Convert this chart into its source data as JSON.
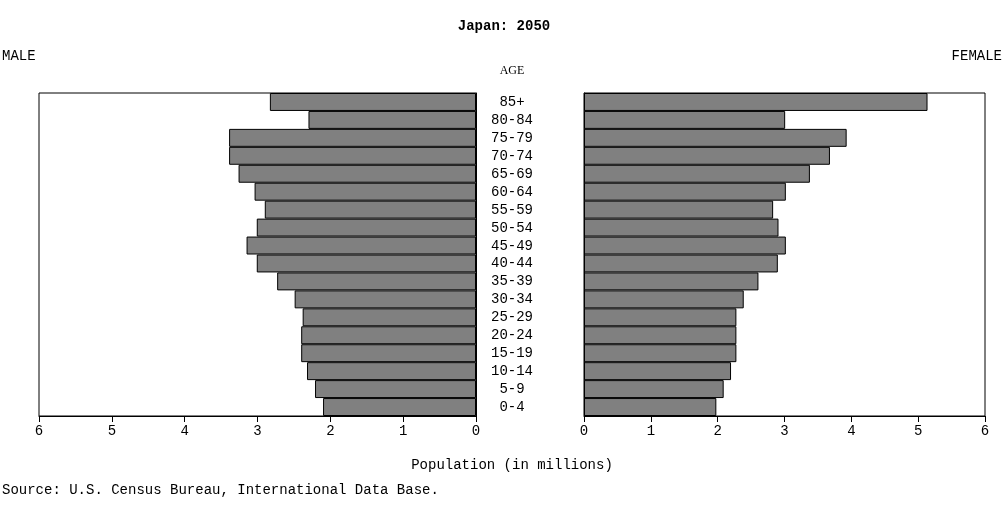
{
  "chart_data": [
    {
      "type": "bar",
      "orientation": "horizontal",
      "title": "Japan: 2050",
      "subtitle": "MALE",
      "ylabel": "AGE",
      "xlabel": "Population (in millions)",
      "annotations": [
        "Source: U.S. Census Bureau, International Data Base."
      ],
      "categories": [
        "85+",
        "80-84",
        "75-79",
        "70-74",
        "65-69",
        "60-64",
        "55-59",
        "50-54",
        "45-49",
        "40-44",
        "35-39",
        "30-34",
        "25-29",
        "20-24",
        "15-19",
        "10-14",
        "5-9",
        "0-4"
      ],
      "values": [
        2.83,
        2.3,
        3.39,
        3.39,
        3.26,
        3.04,
        2.9,
        3.01,
        3.15,
        3.01,
        2.73,
        2.49,
        2.38,
        2.4,
        2.4,
        2.32,
        2.21,
        2.1
      ],
      "color": "#808080",
      "xlim": [
        6,
        0
      ],
      "xticks": [
        6,
        5,
        4,
        3,
        2,
        1,
        0
      ]
    },
    {
      "type": "bar",
      "orientation": "horizontal",
      "subtitle": "FEMALE",
      "categories": [
        null,
        null,
        null,
        null,
        null,
        null,
        null,
        null,
        null,
        null,
        null,
        null,
        null,
        null,
        null,
        null,
        null,
        null
      ],
      "values": [
        5.14,
        3.01,
        3.93,
        3.68,
        3.38,
        3.02,
        2.83,
        2.91,
        3.02,
        2.9,
        2.61,
        2.39,
        2.28,
        2.28,
        2.28,
        2.2,
        2.09,
        1.98
      ],
      "color": "#808080",
      "xlim": [
        0,
        6
      ],
      "xticks": [
        0,
        1,
        2,
        3,
        4,
        5,
        6
      ]
    }
  ]
}
